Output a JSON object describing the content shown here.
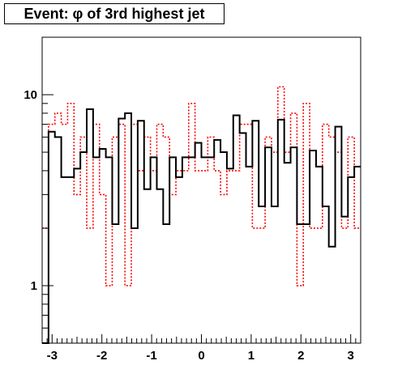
{
  "chart_data": {
    "type": "step",
    "title": "Event: φ of 3rd highest jet",
    "xlim": [
      -3.2,
      3.2
    ],
    "ylim": [
      0.5,
      20
    ],
    "yscale": "log",
    "grid": false,
    "xticks": [
      -3,
      -2,
      -1,
      0,
      1,
      2,
      3
    ],
    "xtick_labels": [
      "-3",
      "-2",
      "-1",
      "0",
      "1",
      "2",
      "3"
    ],
    "yticks": [
      1,
      10
    ],
    "ytick_labels": [
      "1",
      "10"
    ],
    "bins": {
      "n": 50,
      "low": -3.2,
      "high": 3.2
    },
    "series": [
      {
        "style": "solid",
        "color": "#000000",
        "values": [
          0.5,
          6.4,
          6.0,
          3.7,
          3.7,
          4.1,
          5.0,
          8.4,
          4.7,
          5.2,
          4.7,
          2.1,
          7.5,
          8.0,
          2.0,
          7.3,
          3.2,
          4.7,
          3.2,
          2.1,
          4.7,
          3.7,
          4.7,
          4.7,
          5.6,
          4.7,
          4.7,
          5.8,
          5.0,
          4.1,
          7.8,
          6.3,
          4.2,
          7.3,
          2.6,
          5.3,
          2.6,
          7.4,
          4.4,
          5.3,
          2.1,
          2.1,
          5.1,
          4.2,
          2.6,
          1.6,
          6.8,
          2.3,
          3.7,
          4.2
        ]
      },
      {
        "style": "dotted",
        "color": "#ff0000",
        "values": [
          2.0,
          7.0,
          8.0,
          7.0,
          9.0,
          3.0,
          6.0,
          2.0,
          7.0,
          3.0,
          1.0,
          6.0,
          7.0,
          1.0,
          7.0,
          4.0,
          6.0,
          4.0,
          7.0,
          6.0,
          3.0,
          4.0,
          4.0,
          9.0,
          4.0,
          4.0,
          6.0,
          4.0,
          3.0,
          4.0,
          4.0,
          7.0,
          7.0,
          2.0,
          2.0,
          6.0,
          5.0,
          11.0,
          5.0,
          8.0,
          1.0,
          9.0,
          2.0,
          2.0,
          7.0,
          6.0,
          5.0,
          2.0,
          6.0,
          2.0
        ]
      }
    ]
  }
}
